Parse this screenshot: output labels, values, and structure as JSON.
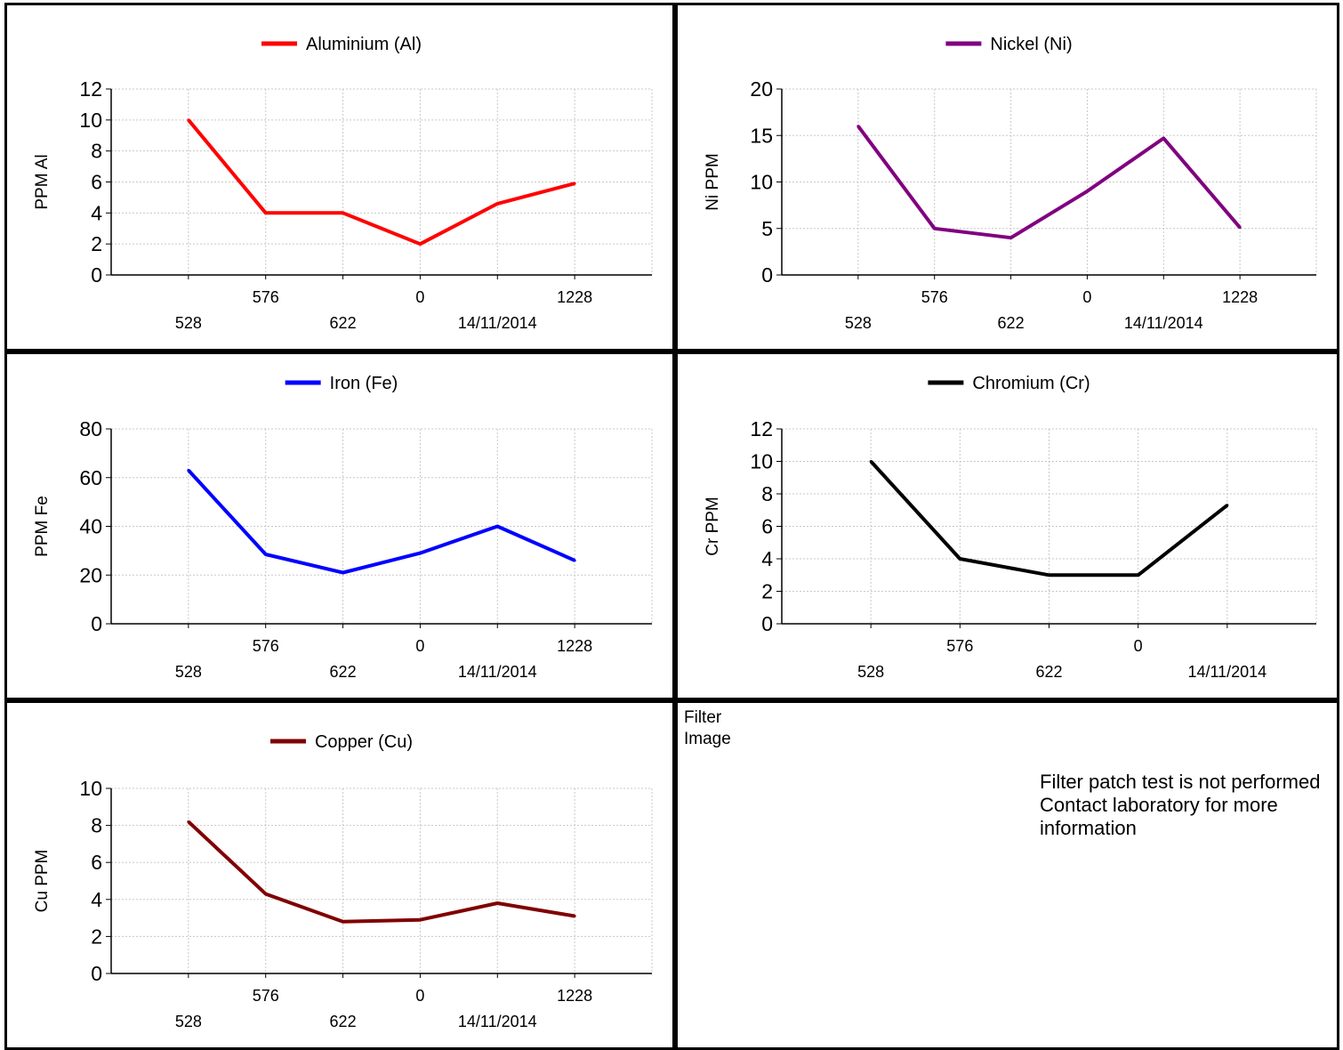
{
  "chart_data": [
    {
      "type": "line",
      "legend": "Aluminium (Al)",
      "color": "#ff0000",
      "ylabel": "PPM Al",
      "ylim": [
        0,
        12
      ],
      "yticks": [
        0,
        2,
        4,
        6,
        8,
        10,
        12
      ],
      "categories": [
        "528",
        "576",
        "622",
        "0",
        "14/11/2014",
        "1228"
      ],
      "values": [
        10,
        4,
        4,
        2,
        4.6,
        5.9
      ]
    },
    {
      "type": "line",
      "legend": "Nickel (Ni)",
      "color": "#800080",
      "ylabel": "Ni PPM",
      "ylim": [
        0,
        20
      ],
      "yticks": [
        0,
        5,
        10,
        15,
        20
      ],
      "categories": [
        "528",
        "576",
        "622",
        "0",
        "14/11/2014",
        "1228"
      ],
      "values": [
        16,
        5,
        4,
        9,
        14.7,
        5.1
      ]
    },
    {
      "type": "line",
      "legend": "Iron (Fe)",
      "color": "#0000ff",
      "ylabel": "PPM Fe",
      "ylim": [
        0,
        80
      ],
      "yticks": [
        0,
        20,
        40,
        60,
        80
      ],
      "categories": [
        "528",
        "576",
        "622",
        "0",
        "14/11/2014",
        "1228"
      ],
      "values": [
        63,
        28.5,
        21,
        29,
        40,
        26
      ]
    },
    {
      "type": "line",
      "legend": "Chromium (Cr)",
      "color": "#000000",
      "ylabel": "Cr PPM",
      "ylim": [
        0,
        12
      ],
      "yticks": [
        0,
        2,
        4,
        6,
        8,
        10,
        12
      ],
      "categories": [
        "528",
        "576",
        "622",
        "0",
        "14/11/2014"
      ],
      "values": [
        10,
        4,
        3,
        3,
        7.3
      ]
    },
    {
      "type": "line",
      "legend": "Copper (Cu)",
      "color": "#800000",
      "ylabel": "Cu PPM",
      "ylim": [
        0,
        10
      ],
      "yticks": [
        0,
        2,
        4,
        6,
        8,
        10
      ],
      "categories": [
        "528",
        "576",
        "622",
        "0",
        "14/11/2014",
        "1228"
      ],
      "values": [
        8.2,
        4.3,
        2.8,
        2.9,
        3.8,
        3.1
      ]
    }
  ],
  "filter": {
    "title": "Filter Image",
    "message": "Filter patch test is not performed Contact laboratory for more information"
  }
}
